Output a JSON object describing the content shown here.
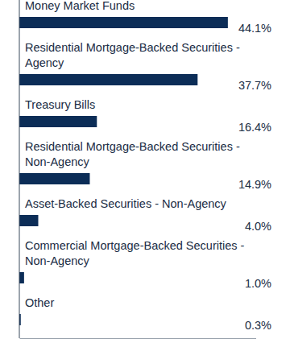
{
  "chart_data": {
    "type": "bar",
    "orientation": "horizontal",
    "categories": [
      "Money Market Funds",
      "Residential Mortgage-Backed Securities - Agency",
      "Treasury Bills",
      "Residential Mortgage-Backed Securities - Non-Agency",
      "Asset-Backed Securities - Non-Agency",
      "Commercial Mortgage-Backed Securities - Non-Agency",
      "Other"
    ],
    "values": [
      44.1,
      37.7,
      16.4,
      14.9,
      4.0,
      1.0,
      0.3
    ],
    "value_labels": [
      "44.1%",
      "37.7%",
      "16.4%",
      "14.9%",
      "4.0%",
      "1.0%",
      "0.3%"
    ],
    "data_labels": true,
    "color": "#0c2d57",
    "xlim": [
      0,
      50
    ],
    "tick_labels": false,
    "grid": false
  }
}
